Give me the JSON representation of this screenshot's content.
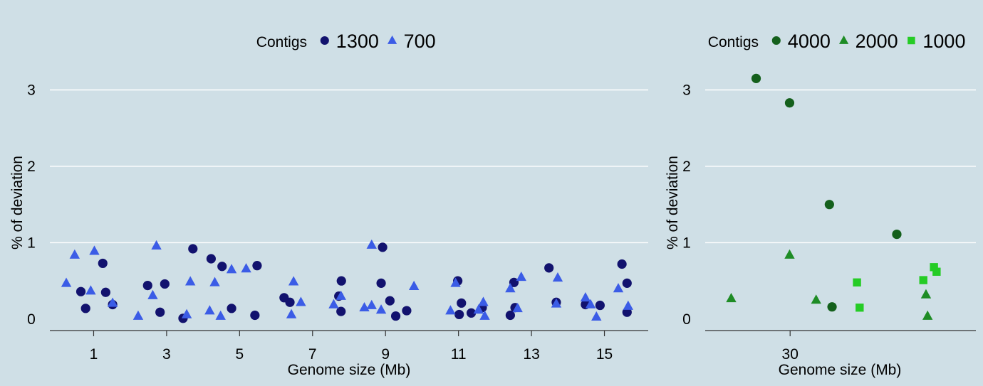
{
  "chart_data": [
    {
      "type": "scatter",
      "xlabel": "Genome size (Mb)",
      "ylabel": "% of deviation",
      "xlim": [
        -0.2,
        16.2
      ],
      "ylim": [
        -0.15,
        3.2
      ],
      "xticks": [
        1,
        3,
        5,
        7,
        9,
        11,
        13,
        15
      ],
      "yticks": [
        0,
        1,
        2,
        3
      ],
      "grid": "horizontal",
      "legend": {
        "title": "Contigs",
        "placement": "top-center"
      },
      "series": [
        {
          "name": "1300",
          "marker": "circle",
          "color": "#12126e",
          "points": [
            [
              0.65,
              0.36
            ],
            [
              0.78,
              0.14
            ],
            [
              1.25,
              0.73
            ],
            [
              1.33,
              0.35
            ],
            [
              1.52,
              0.19
            ],
            [
              2.48,
              0.44
            ],
            [
              2.82,
              0.09
            ],
            [
              2.95,
              0.46
            ],
            [
              3.45,
              0.01
            ],
            [
              3.72,
              0.92
            ],
            [
              4.22,
              0.79
            ],
            [
              4.52,
              0.69
            ],
            [
              4.78,
              0.14
            ],
            [
              5.42,
              0.05
            ],
            [
              5.48,
              0.7
            ],
            [
              6.22,
              0.28
            ],
            [
              6.38,
              0.22
            ],
            [
              7.72,
              0.3
            ],
            [
              7.78,
              0.1
            ],
            [
              7.79,
              0.5
            ],
            [
              8.88,
              0.47
            ],
            [
              8.92,
              0.94
            ],
            [
              9.12,
              0.24
            ],
            [
              9.28,
              0.04
            ],
            [
              9.58,
              0.11
            ],
            [
              10.98,
              0.5
            ],
            [
              11.02,
              0.06
            ],
            [
              11.08,
              0.21
            ],
            [
              11.35,
              0.08
            ],
            [
              11.65,
              0.15
            ],
            [
              12.42,
              0.05
            ],
            [
              12.52,
              0.48
            ],
            [
              12.55,
              0.15
            ],
            [
              13.48,
              0.67
            ],
            [
              13.68,
              0.22
            ],
            [
              14.48,
              0.19
            ],
            [
              14.88,
              0.18
            ],
            [
              15.48,
              0.72
            ],
            [
              15.62,
              0.47
            ],
            [
              15.62,
              0.09
            ]
          ]
        },
        {
          "name": "700",
          "marker": "triangle",
          "color": "#3b5ce6",
          "points": [
            [
              0.25,
              0.47
            ],
            [
              0.48,
              0.84
            ],
            [
              0.92,
              0.37
            ],
            [
              1.02,
              0.89
            ],
            [
              1.52,
              0.21
            ],
            [
              2.22,
              0.04
            ],
            [
              2.62,
              0.31
            ],
            [
              2.72,
              0.96
            ],
            [
              3.55,
              0.06
            ],
            [
              3.65,
              0.49
            ],
            [
              4.18,
              0.11
            ],
            [
              4.32,
              0.48
            ],
            [
              4.48,
              0.04
            ],
            [
              4.78,
              0.65
            ],
            [
              5.18,
              0.66
            ],
            [
              6.42,
              0.06
            ],
            [
              6.48,
              0.49
            ],
            [
              6.68,
              0.22
            ],
            [
              7.58,
              0.19
            ],
            [
              7.78,
              0.3
            ],
            [
              8.42,
              0.15
            ],
            [
              8.62,
              0.18
            ],
            [
              8.62,
              0.97
            ],
            [
              8.88,
              0.12
            ],
            [
              9.78,
              0.43
            ],
            [
              10.78,
              0.11
            ],
            [
              10.92,
              0.47
            ],
            [
              11.55,
              0.12
            ],
            [
              11.68,
              0.22
            ],
            [
              11.72,
              0.04
            ],
            [
              12.42,
              0.4
            ],
            [
              12.62,
              0.14
            ],
            [
              12.72,
              0.55
            ],
            [
              13.68,
              0.2
            ],
            [
              13.72,
              0.54
            ],
            [
              14.48,
              0.28
            ],
            [
              14.62,
              0.19
            ],
            [
              14.78,
              0.03
            ],
            [
              15.38,
              0.4
            ],
            [
              15.65,
              0.17
            ]
          ]
        }
      ]
    },
    {
      "type": "scatter",
      "xlabel": "Genome size (Mb)",
      "ylabel": "% of deviation",
      "xlim": [
        26.8,
        37.0
      ],
      "ylim": [
        -0.15,
        3.2
      ],
      "xticks": [
        30
      ],
      "yticks": [
        0,
        1,
        2,
        3
      ],
      "grid": "horizontal",
      "legend": {
        "title": "Contigs",
        "placement": "top-center"
      },
      "series": [
        {
          "name": "4000",
          "marker": "circle",
          "color": "#14601c",
          "points": [
            [
              28.72,
              3.15
            ],
            [
              29.98,
              2.83
            ],
            [
              31.48,
              1.5
            ],
            [
              31.58,
              0.16
            ],
            [
              34.02,
              1.11
            ]
          ]
        },
        {
          "name": "2000",
          "marker": "triangle",
          "color": "#1e8c25",
          "points": [
            [
              27.78,
              0.27
            ],
            [
              29.98,
              0.84
            ],
            [
              30.98,
              0.25
            ],
            [
              35.12,
              0.32
            ],
            [
              35.18,
              0.04
            ]
          ]
        },
        {
          "name": "1000",
          "marker": "square",
          "color": "#25cc25",
          "points": [
            [
              32.52,
              0.48
            ],
            [
              32.62,
              0.15
            ],
            [
              35.02,
              0.51
            ],
            [
              35.42,
              0.68
            ],
            [
              35.52,
              0.62
            ]
          ]
        }
      ]
    }
  ]
}
